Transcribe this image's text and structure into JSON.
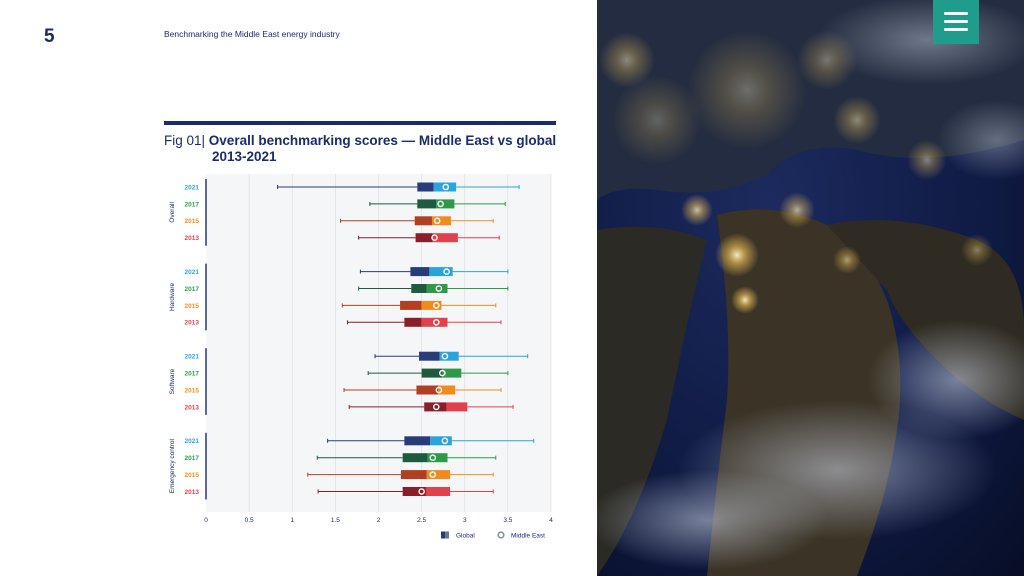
{
  "page": {
    "number": "5",
    "header_title": "Benchmarking the Middle East energy industry"
  },
  "figure": {
    "label": "Fig 01|",
    "title": "Overall benchmarking scores — Middle East vs global",
    "subtitle": "2013-2021"
  },
  "colors": {
    "navy": "#1a2b6e",
    "teal": "#1f9c8c",
    "2021": {
      "dark": "#283c7a",
      "light": "#2aa4dc",
      "text": "#2aa4dc"
    },
    "2017": {
      "dark": "#1e5a3e",
      "light": "#2e9a48",
      "text": "#2e9a48"
    },
    "2015": {
      "dark": "#b33f22",
      "light": "#f08c1e",
      "text": "#f08c1e"
    },
    "2013": {
      "dark": "#8a1f2a",
      "light": "#e0414c",
      "text": "#e0414c"
    }
  },
  "chart_data": {
    "type": "box",
    "title": "Overall benchmarking scores — Middle East vs global 2013-2021",
    "xlim": [
      0,
      4
    ],
    "x_ticks": [
      "0",
      "0.5",
      "1",
      "1.5",
      "2",
      "2.5",
      "3",
      "3.5",
      "4"
    ],
    "legend": [
      {
        "label": "Global",
        "symbol": "square"
      },
      {
        "label": "Middle East",
        "symbol": "circle"
      }
    ],
    "groups": [
      {
        "name": "Overall",
        "rows": [
          {
            "year": "2021",
            "whisker_low": 0.83,
            "q1": 2.45,
            "median": 2.64,
            "q3": 2.9,
            "whisker_high": 3.63,
            "middle_east": 2.78
          },
          {
            "year": "2017",
            "whisker_low": 1.9,
            "q1": 2.45,
            "median": 2.67,
            "q3": 2.88,
            "whisker_high": 3.47,
            "middle_east": 2.72
          },
          {
            "year": "2015",
            "whisker_low": 1.56,
            "q1": 2.42,
            "median": 2.62,
            "q3": 2.84,
            "whisker_high": 3.33,
            "middle_east": 2.68
          },
          {
            "year": "2013",
            "whisker_low": 1.77,
            "q1": 2.43,
            "median": 2.63,
            "q3": 2.92,
            "whisker_high": 3.4,
            "middle_east": 2.65
          }
        ]
      },
      {
        "name": "Hardware",
        "rows": [
          {
            "year": "2021",
            "whisker_low": 1.79,
            "q1": 2.37,
            "median": 2.59,
            "q3": 2.86,
            "whisker_high": 3.5,
            "middle_east": 2.79
          },
          {
            "year": "2017",
            "whisker_low": 1.77,
            "q1": 2.38,
            "median": 2.56,
            "q3": 2.8,
            "whisker_high": 3.5,
            "middle_east": 2.7
          },
          {
            "year": "2015",
            "whisker_low": 1.58,
            "q1": 2.25,
            "median": 2.5,
            "q3": 2.73,
            "whisker_high": 3.36,
            "middle_east": 2.67
          },
          {
            "year": "2013",
            "whisker_low": 1.64,
            "q1": 2.3,
            "median": 2.5,
            "q3": 2.8,
            "whisker_high": 3.42,
            "middle_east": 2.67
          }
        ]
      },
      {
        "name": "Software",
        "rows": [
          {
            "year": "2021",
            "whisker_low": 1.96,
            "q1": 2.47,
            "median": 2.71,
            "q3": 2.93,
            "whisker_high": 3.73,
            "middle_east": 2.77
          },
          {
            "year": "2017",
            "whisker_low": 1.88,
            "q1": 2.5,
            "median": 2.74,
            "q3": 2.96,
            "whisker_high": 3.5,
            "middle_east": 2.74
          },
          {
            "year": "2015",
            "whisker_low": 1.6,
            "q1": 2.44,
            "median": 2.69,
            "q3": 2.89,
            "whisker_high": 3.42,
            "middle_east": 2.7
          },
          {
            "year": "2013",
            "whisker_low": 1.66,
            "q1": 2.53,
            "median": 2.79,
            "q3": 3.03,
            "whisker_high": 3.56,
            "middle_east": 2.67
          }
        ]
      },
      {
        "name": "Emergency control",
        "rows": [
          {
            "year": "2021",
            "whisker_low": 1.41,
            "q1": 2.3,
            "median": 2.6,
            "q3": 2.85,
            "whisker_high": 3.8,
            "middle_east": 2.77
          },
          {
            "year": "2017",
            "whisker_low": 1.29,
            "q1": 2.28,
            "median": 2.57,
            "q3": 2.8,
            "whisker_high": 3.36,
            "middle_east": 2.63
          },
          {
            "year": "2015",
            "whisker_low": 1.18,
            "q1": 2.26,
            "median": 2.56,
            "q3": 2.83,
            "whisker_high": 3.33,
            "middle_east": 2.63
          },
          {
            "year": "2013",
            "whisker_low": 1.3,
            "q1": 2.28,
            "median": 2.55,
            "q3": 2.83,
            "whisker_high": 3.33,
            "middle_east": 2.5
          }
        ]
      }
    ]
  }
}
